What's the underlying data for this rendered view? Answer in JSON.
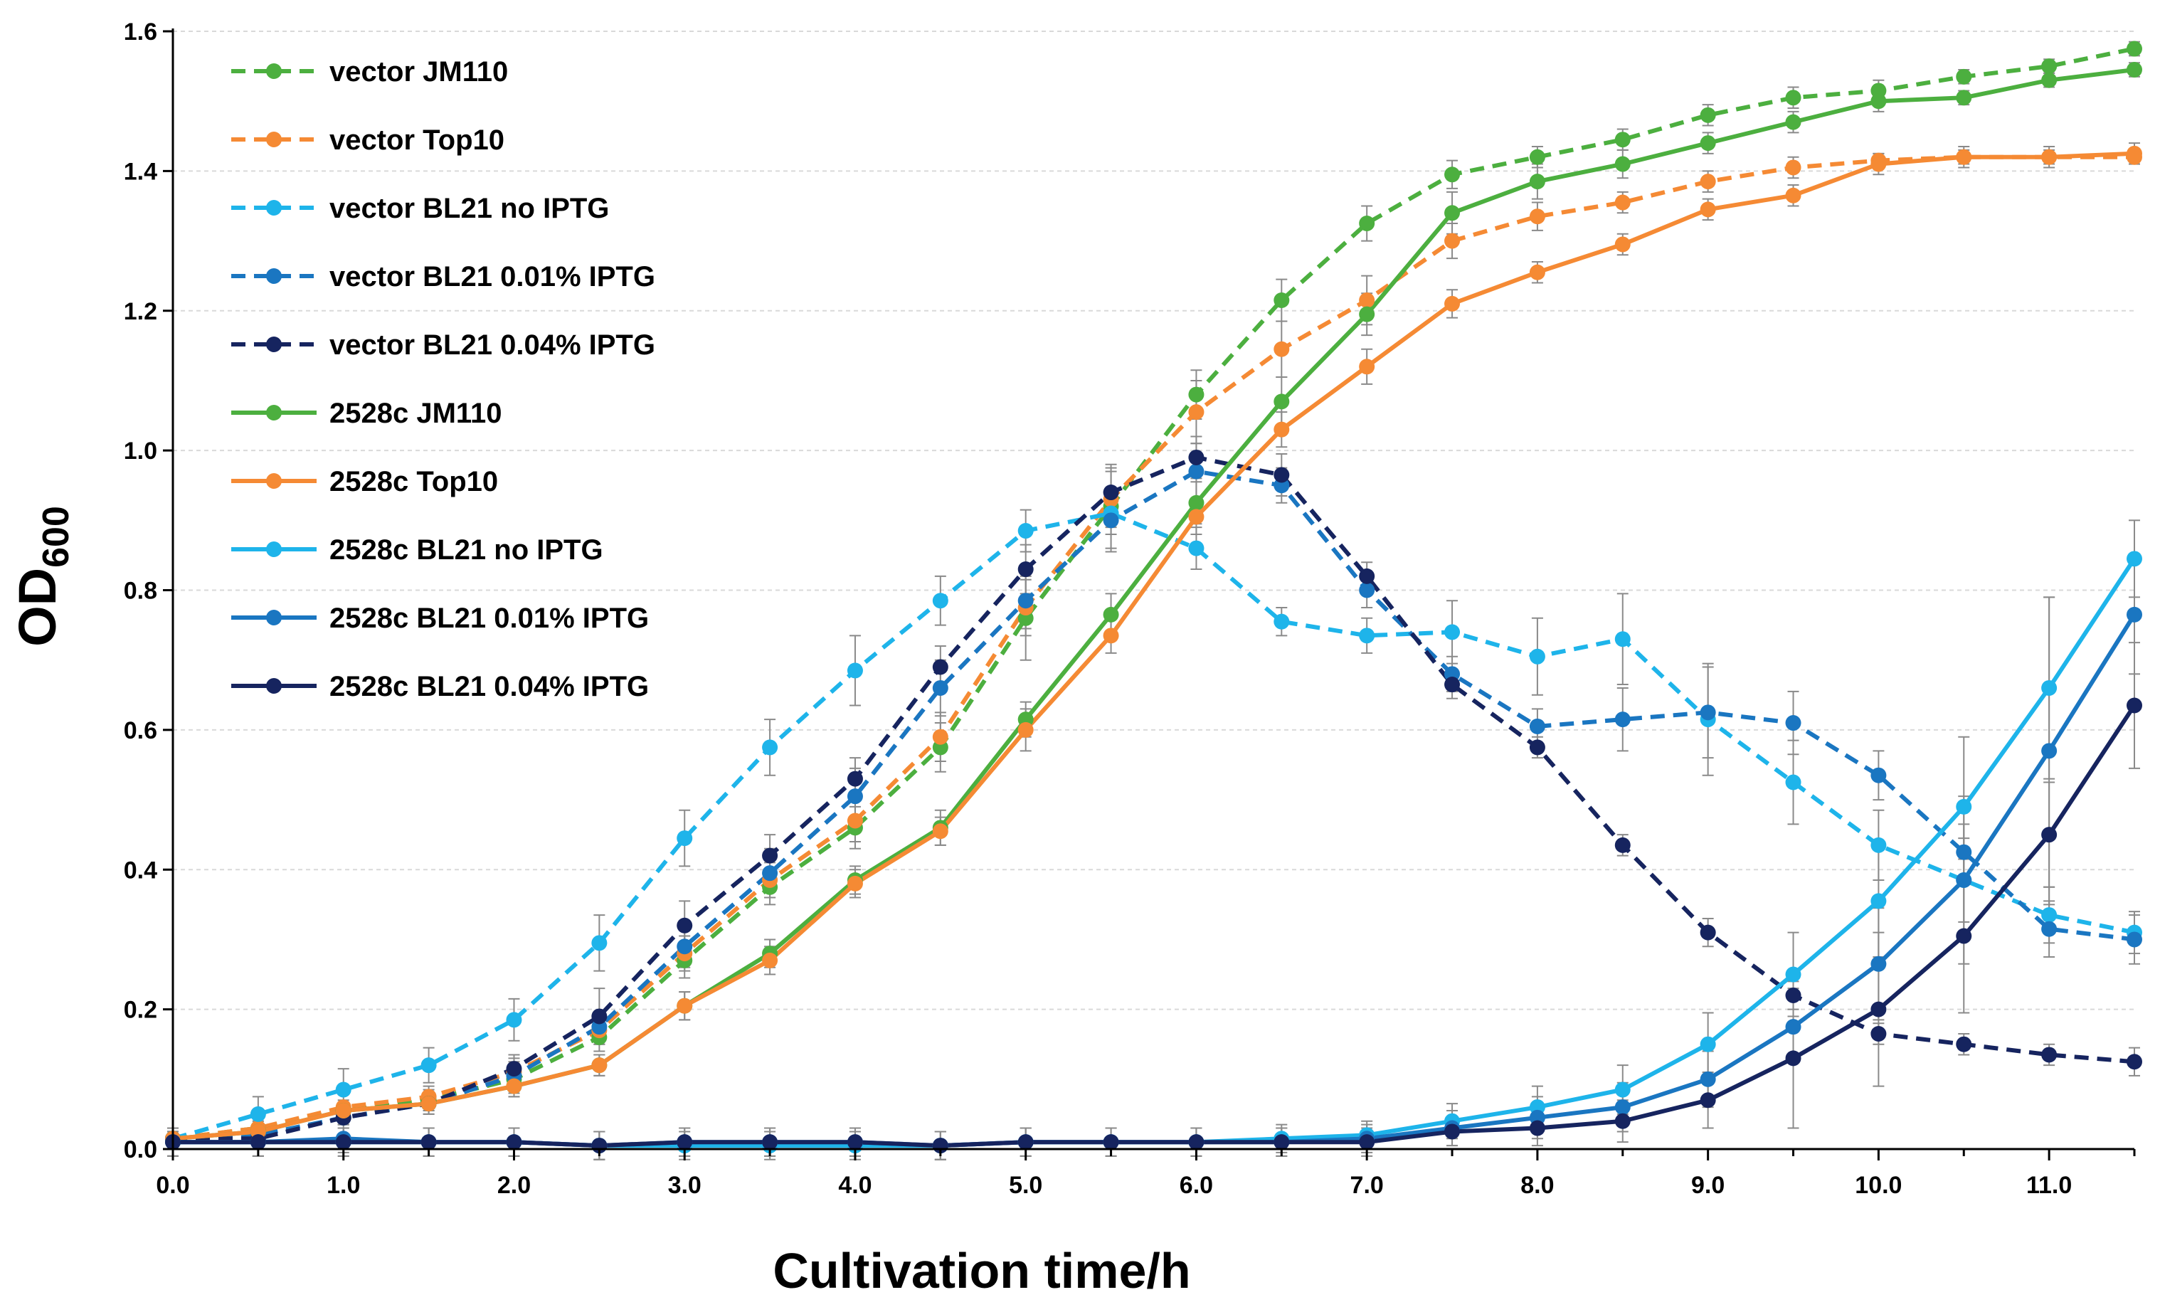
{
  "chart_data": {
    "type": "line",
    "xlabel": "Cultivation time/h",
    "ylabel_main": "OD",
    "ylabel_sub": "600",
    "xlim": [
      0,
      11.5
    ],
    "ylim": [
      0,
      1.6
    ],
    "xticks": [
      "0.0",
      "1.0",
      "2.0",
      "3.0",
      "4.0",
      "5.0",
      "6.0",
      "7.0",
      "8.0",
      "9.0",
      "10.0",
      "11.0"
    ],
    "yticks": [
      "0.0",
      "0.2",
      "0.4",
      "0.6",
      "0.8",
      "1.0",
      "1.2",
      "1.4",
      "1.6"
    ],
    "grid": "horizontal",
    "legend_position": "top-left",
    "x": [
      0,
      0.5,
      1,
      1.5,
      2,
      2.5,
      3,
      3.5,
      4,
      4.5,
      5,
      5.5,
      6,
      6.5,
      7,
      7.5,
      8,
      8.5,
      9,
      9.5,
      10,
      10.5,
      11,
      11.5
    ],
    "series": [
      {
        "name": "vector JM110",
        "color": "#4CAF3F",
        "dash": true,
        "values": [
          0.015,
          0.03,
          0.055,
          0.07,
          0.1,
          0.16,
          0.27,
          0.375,
          0.46,
          0.575,
          0.76,
          0.92,
          1.08,
          1.215,
          1.325,
          1.395,
          1.42,
          1.445,
          1.48,
          1.505,
          1.515,
          1.535,
          1.55,
          1.575
        ],
        "errors": [
          0.01,
          0.01,
          0.01,
          0.015,
          0.02,
          0.02,
          0.025,
          0.025,
          0.03,
          0.035,
          0.06,
          0.06,
          0.035,
          0.03,
          0.025,
          0.02,
          0.015,
          0.015,
          0.015,
          0.015,
          0.015,
          0.01,
          0.01,
          0.01
        ]
      },
      {
        "name": "vector Top10",
        "color": "#F58A34",
        "dash": true,
        "values": [
          0.015,
          0.03,
          0.06,
          0.075,
          0.11,
          0.17,
          0.28,
          0.385,
          0.47,
          0.59,
          0.775,
          0.93,
          1.055,
          1.145,
          1.215,
          1.3,
          1.335,
          1.355,
          1.385,
          1.405,
          1.415,
          1.42,
          1.42,
          1.42
        ],
        "errors": [
          0.01,
          0.01,
          0.01,
          0.015,
          0.02,
          0.02,
          0.025,
          0.025,
          0.03,
          0.035,
          0.04,
          0.04,
          0.045,
          0.04,
          0.035,
          0.025,
          0.02,
          0.015,
          0.015,
          0.015,
          0.01,
          0.01,
          0.01,
          0.01
        ]
      },
      {
        "name": "vector BL21 no IPTG",
        "color": "#1EB4EA",
        "dash": true,
        "values": [
          0.015,
          0.05,
          0.085,
          0.12,
          0.185,
          0.295,
          0.445,
          0.575,
          0.685,
          0.785,
          0.885,
          0.91,
          0.86,
          0.755,
          0.735,
          0.74,
          0.705,
          0.73,
          0.615,
          0.525,
          0.435,
          0.385,
          0.335,
          0.31
        ],
        "errors": [
          0.01,
          0.025,
          0.03,
          0.025,
          0.03,
          0.04,
          0.04,
          0.04,
          0.05,
          0.035,
          0.03,
          0.03,
          0.03,
          0.02,
          0.025,
          0.045,
          0.055,
          0.065,
          0.08,
          0.06,
          0.05,
          0.06,
          0.04,
          0.03
        ]
      },
      {
        "name": "vector BL21 0.01% IPTG",
        "color": "#1A76C1",
        "dash": true,
        "values": [
          0.015,
          0.02,
          0.045,
          0.065,
          0.105,
          0.175,
          0.29,
          0.395,
          0.505,
          0.66,
          0.785,
          0.9,
          0.97,
          0.95,
          0.8,
          0.68,
          0.605,
          0.615,
          0.625,
          0.61,
          0.535,
          0.425,
          0.315,
          0.3
        ],
        "errors": [
          0.01,
          0.01,
          0.01,
          0.015,
          0.02,
          0.02,
          0.03,
          0.035,
          0.04,
          0.04,
          0.04,
          0.045,
          0.04,
          0.025,
          0.025,
          0.025,
          0.025,
          0.045,
          0.065,
          0.045,
          0.035,
          0.04,
          0.04,
          0.035
        ]
      },
      {
        "name": "vector BL21 0.04% IPTG",
        "color": "#16245F",
        "dash": true,
        "values": [
          0.015,
          0.015,
          0.045,
          0.065,
          0.115,
          0.19,
          0.32,
          0.42,
          0.53,
          0.69,
          0.83,
          0.94,
          0.99,
          0.965,
          0.82,
          0.665,
          0.575,
          0.435,
          0.31,
          0.22,
          0.165,
          0.15,
          0.135,
          0.125
        ],
        "errors": [
          0.01,
          0.01,
          0.01,
          0.015,
          0.02,
          0.04,
          0.035,
          0.03,
          0.03,
          0.03,
          0.035,
          0.035,
          0.03,
          0.03,
          0.02,
          0.02,
          0.015,
          0.015,
          0.02,
          0.02,
          0.015,
          0.015,
          0.015,
          0.02
        ]
      },
      {
        "name": "2528c JM110",
        "color": "#4CAF3F",
        "dash": false,
        "values": [
          0.015,
          0.025,
          0.055,
          0.065,
          0.09,
          0.12,
          0.205,
          0.28,
          0.385,
          0.46,
          0.615,
          0.765,
          0.925,
          1.07,
          1.195,
          1.34,
          1.385,
          1.41,
          1.44,
          1.47,
          1.5,
          1.505,
          1.53,
          1.545
        ],
        "errors": [
          0.01,
          0.01,
          0.01,
          0.01,
          0.015,
          0.015,
          0.02,
          0.02,
          0.02,
          0.025,
          0.025,
          0.03,
          0.03,
          0.035,
          0.03,
          0.03,
          0.025,
          0.02,
          0.015,
          0.015,
          0.015,
          0.01,
          0.01,
          0.01
        ]
      },
      {
        "name": "2528c Top10",
        "color": "#F58A34",
        "dash": false,
        "values": [
          0.015,
          0.025,
          0.055,
          0.065,
          0.09,
          0.12,
          0.205,
          0.27,
          0.38,
          0.455,
          0.6,
          0.735,
          0.905,
          1.03,
          1.12,
          1.21,
          1.255,
          1.295,
          1.345,
          1.365,
          1.41,
          1.42,
          1.42,
          1.425
        ],
        "errors": [
          0.01,
          0.01,
          0.01,
          0.01,
          0.015,
          0.015,
          0.02,
          0.02,
          0.02,
          0.02,
          0.03,
          0.025,
          0.025,
          0.025,
          0.025,
          0.02,
          0.015,
          0.015,
          0.015,
          0.015,
          0.015,
          0.015,
          0.015,
          0.015
        ]
      },
      {
        "name": "2528c BL21 no IPTG",
        "color": "#1EB4EA",
        "dash": false,
        "values": [
          0.01,
          0.01,
          0.01,
          0.01,
          0.01,
          0.005,
          0.005,
          0.005,
          0.005,
          0.005,
          0.01,
          0.01,
          0.01,
          0.015,
          0.02,
          0.04,
          0.06,
          0.085,
          0.15,
          0.25,
          0.355,
          0.49,
          0.66,
          0.845
        ],
        "errors": [
          0.02,
          0.02,
          0.02,
          0.02,
          0.02,
          0.02,
          0.02,
          0.02,
          0.02,
          0.02,
          0.02,
          0.02,
          0.02,
          0.02,
          0.02,
          0.025,
          0.03,
          0.035,
          0.045,
          0.06,
          0.08,
          0.1,
          0.13,
          0.055
        ]
      },
      {
        "name": "2528c BL21 0.01% IPTG",
        "color": "#1A76C1",
        "dash": false,
        "values": [
          0.01,
          0.01,
          0.015,
          0.01,
          0.01,
          0.005,
          0.01,
          0.01,
          0.01,
          0.005,
          0.01,
          0.01,
          0.01,
          0.01,
          0.015,
          0.03,
          0.045,
          0.06,
          0.1,
          0.175,
          0.265,
          0.385,
          0.57,
          0.765
        ],
        "errors": [
          0.02,
          0.02,
          0.02,
          0.02,
          0.02,
          0.02,
          0.02,
          0.02,
          0.02,
          0.02,
          0.02,
          0.02,
          0.02,
          0.02,
          0.02,
          0.025,
          0.03,
          0.035,
          0.04,
          0.05,
          0.08,
          0.12,
          0.22,
          0.085
        ]
      },
      {
        "name": "2528c BL21 0.04% IPTG",
        "color": "#16245F",
        "dash": false,
        "values": [
          0.01,
          0.01,
          0.01,
          0.01,
          0.01,
          0.005,
          0.01,
          0.01,
          0.01,
          0.005,
          0.01,
          0.01,
          0.01,
          0.01,
          0.01,
          0.025,
          0.03,
          0.04,
          0.07,
          0.13,
          0.2,
          0.305,
          0.45,
          0.635
        ],
        "errors": [
          0.02,
          0.02,
          0.02,
          0.02,
          0.02,
          0.02,
          0.02,
          0.02,
          0.02,
          0.02,
          0.02,
          0.02,
          0.02,
          0.02,
          0.02,
          0.02,
          0.025,
          0.03,
          0.04,
          0.1,
          0.11,
          0.11,
          0.075,
          0.09
        ]
      }
    ]
  }
}
